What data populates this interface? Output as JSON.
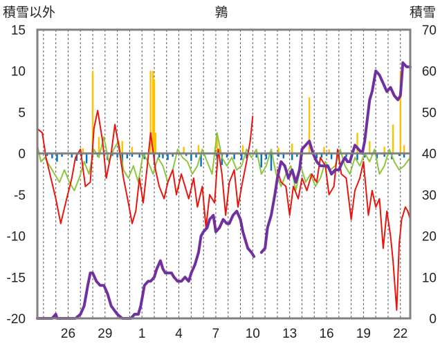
{
  "chart_data": {
    "type": "line",
    "title": "鶉",
    "left_axis_label": "積雪以外",
    "right_axis_label": "積雪",
    "left_ylim": [
      -20,
      15
    ],
    "left_ticks": [
      15,
      10,
      5,
      0,
      -5,
      -10,
      -15,
      -20
    ],
    "right_ylim": [
      0,
      70
    ],
    "right_ticks": [
      70,
      60,
      50,
      40,
      30,
      20,
      10,
      0
    ],
    "x_range": [
      23.5,
      53.8
    ],
    "x_tick_positions": [
      26,
      29,
      32,
      35,
      38,
      41,
      44,
      47,
      50
    ],
    "x_tick_labels": [
      "26",
      "29",
      "1",
      "4",
      "7",
      "10",
      "13",
      "16",
      "19",
      "22"
    ],
    "x_tick_label_positions": [
      26,
      29,
      32,
      35,
      38,
      41,
      44,
      47,
      50,
      53
    ],
    "grid": "vertical dashed daily",
    "colors": {
      "temp_max": "#e8150f",
      "temp_min": "#8cc63f",
      "snow_depth": "#7030a0",
      "precip": "#0070c0",
      "snowfall": "#ffc000",
      "frame": "#7f7f7f",
      "zero_line": "#7f7f7f"
    },
    "series": [
      {
        "key": "temp_max",
        "axis": "left",
        "x": [
          23.5,
          23.9,
          24.2,
          24.6,
          25.0,
          25.4,
          25.8,
          26.3,
          26.6,
          27.0,
          27.4,
          27.8,
          28.1,
          28.4,
          28.8,
          29.1,
          29.5,
          29.8,
          30.1,
          30.5,
          30.9,
          31.2,
          31.5,
          31.8,
          32.1,
          32.4,
          32.7,
          33.1,
          33.4,
          33.8,
          34.1,
          34.5,
          34.8,
          35.2,
          35.5,
          35.8,
          36.2,
          36.5,
          36.9,
          37.2,
          37.5,
          37.9,
          38.2,
          38.5,
          38.8,
          39.1,
          39.5,
          39.8,
          40.1,
          40.5,
          40.8,
          41.0
        ],
        "y": [
          3.0,
          2.5,
          -0.5,
          -3.0,
          -5.5,
          -8.5,
          -6.0,
          -3.0,
          -0.5,
          0.5,
          -4.0,
          -3.5,
          3.0,
          5.2,
          1.5,
          -3.0,
          0.0,
          3.5,
          1.0,
          -3.0,
          -6.0,
          -8.5,
          -7.0,
          -3.0,
          -6.0,
          -2.0,
          2.5,
          -2.0,
          -4.0,
          -5.5,
          -3.5,
          -2.0,
          -5.0,
          -2.5,
          -4.0,
          -5.5,
          -3.0,
          -6.5,
          -4.0,
          -9.0,
          -5.0,
          -6.0,
          0.5,
          -2.5,
          -7.5,
          -3.5,
          -2.0,
          -6.5,
          -4.0,
          -1.0,
          1.5,
          4.5
        ]
      },
      {
        "key": "temp_max",
        "axis": "left",
        "x": [
          43.0,
          43.3,
          43.7,
          44.0,
          44.3,
          44.7,
          45.0,
          45.4,
          45.8,
          46.2,
          46.5,
          46.9,
          47.2,
          47.6,
          47.9,
          48.2,
          48.6,
          49.0,
          49.3,
          49.7,
          50.0,
          50.4,
          50.7,
          51.0,
          51.3,
          51.6,
          51.9,
          52.2,
          52.4,
          52.7,
          52.9,
          53.1,
          53.4,
          53.6,
          53.8
        ],
        "y": [
          -2.0,
          -3.5,
          -4.0,
          -7.5,
          -4.0,
          -5.5,
          -3.0,
          -4.5,
          -2.5,
          -3.5,
          -0.5,
          -1.5,
          -5.0,
          -4.0,
          0.5,
          -2.5,
          -3.0,
          -8.0,
          -4.5,
          -3.0,
          -1.0,
          -7.5,
          -4.5,
          -6.5,
          -5.5,
          -11.5,
          -7.0,
          -10.0,
          -13.0,
          -19.0,
          -11.0,
          -8.0,
          -6.5,
          -7.0,
          -8.0
        ]
      },
      {
        "key": "temp_min",
        "axis": "left",
        "x": [
          23.5,
          23.8,
          24.1,
          24.5,
          24.9,
          25.3,
          25.7,
          26.1,
          26.5,
          26.9,
          27.3,
          27.7,
          28.1,
          28.5,
          28.9,
          29.3,
          29.7,
          30.1,
          30.5,
          30.9,
          31.3,
          31.7,
          32.1,
          32.5,
          32.9,
          33.3,
          33.7,
          34.1,
          34.5,
          34.9,
          35.3,
          35.7,
          36.1,
          36.5,
          36.9,
          37.3,
          37.7,
          38.1,
          38.5,
          38.9,
          39.3,
          39.7,
          40.1,
          40.5,
          40.9,
          41.3,
          41.7,
          42.1,
          42.5,
          42.9,
          43.3,
          43.7,
          44.1,
          44.5,
          44.9,
          45.3,
          45.7,
          46.1,
          46.5,
          46.9,
          47.3,
          47.7,
          48.1,
          48.5,
          48.9,
          49.3,
          49.7,
          50.1,
          50.5,
          50.9,
          51.3,
          51.7,
          52.1,
          52.5,
          52.9,
          53.3,
          53.8
        ],
        "y": [
          1.0,
          -1.0,
          -0.5,
          -1.5,
          -2.5,
          -3.5,
          -2.0,
          -3.5,
          -4.5,
          -3.0,
          -1.0,
          -2.5,
          0.5,
          -0.5,
          2.0,
          -1.0,
          0.5,
          1.5,
          -2.0,
          -3.0,
          -1.5,
          -3.5,
          0.0,
          -1.0,
          -2.5,
          -0.5,
          -1.5,
          -3.5,
          -2.0,
          0.5,
          -0.5,
          -1.0,
          -2.5,
          -1.5,
          0.5,
          -1.0,
          -2.5,
          2.5,
          -0.5,
          -1.5,
          -0.5,
          -2.0,
          -1.5,
          0.5,
          -0.5,
          0.5,
          -2.5,
          -1.5,
          0.5,
          -2.5,
          -4.0,
          -2.5,
          -1.5,
          -4.5,
          -1.5,
          -3.5,
          -2.5,
          -4.0,
          -3.0,
          -1.0,
          -2.0,
          -1.5,
          0.5,
          -1.5,
          -2.5,
          -0.5,
          -1.5,
          0.0,
          -1.0,
          0.5,
          -2.5,
          -1.5,
          0.5,
          -1.0,
          -2.0,
          -1.5,
          -0.5
        ]
      },
      {
        "key": "snow_depth",
        "axis": "right",
        "x": [
          23.5,
          24.7,
          25.0,
          25.1,
          25.3,
          25.8,
          26.2,
          26.6,
          27.0,
          27.3,
          27.6,
          27.8,
          28.0,
          28.3,
          28.6,
          28.9,
          29.2,
          29.5,
          30.0,
          30.4,
          30.8,
          31.1,
          31.4,
          31.7,
          31.9,
          32.2,
          32.5,
          32.7,
          33.0,
          33.2,
          33.5,
          33.7,
          33.9,
          34.1,
          34.4,
          34.6,
          34.9,
          35.2,
          35.5,
          35.8,
          36.0,
          36.3,
          36.6,
          36.8,
          37.0,
          37.3,
          37.5,
          37.8,
          38.0,
          38.3,
          38.6,
          38.9,
          39.1,
          39.4,
          39.7,
          40.0,
          40.2,
          40.4,
          40.6,
          40.9,
          41.1
        ],
        "y": [
          0,
          0,
          1,
          0,
          0,
          0,
          0,
          0,
          1,
          3,
          8,
          11,
          11,
          9,
          8,
          8,
          6,
          3,
          1,
          0,
          0,
          0,
          1,
          1,
          3,
          8,
          9,
          9,
          10,
          12,
          14,
          12,
          11,
          11,
          11,
          10,
          9,
          9,
          10,
          9,
          11,
          13,
          16,
          20,
          21,
          22,
          24,
          25,
          21,
          22,
          24,
          23,
          23,
          25,
          26,
          24,
          21,
          19,
          17,
          16,
          15
        ]
      },
      {
        "key": "snow_depth",
        "axis": "right",
        "x": [
          41.7,
          42.0,
          42.2,
          42.5,
          42.8,
          43.0,
          43.3,
          43.6,
          43.9,
          44.2,
          44.5,
          44.8,
          45.0,
          45.3,
          45.6,
          45.9,
          46.2,
          46.5,
          46.8,
          47.1,
          47.4,
          47.7,
          48.0,
          48.3,
          48.5,
          48.7,
          48.9,
          49.1,
          49.3,
          49.6,
          49.9,
          50.1,
          50.3,
          50.5,
          50.7,
          51.0,
          51.3,
          51.6,
          51.9,
          52.2,
          52.5,
          52.8,
          53.0,
          53.2,
          53.5,
          53.8
        ],
        "y": [
          16,
          17,
          22,
          25,
          30,
          34,
          38,
          37,
          34,
          36,
          33,
          36,
          41,
          42,
          43,
          40,
          38,
          37,
          37,
          37,
          35,
          36,
          36,
          38,
          39,
          38,
          38,
          40,
          42,
          41,
          40,
          43,
          48,
          53,
          55,
          60,
          59,
          57,
          55,
          56,
          54,
          53,
          54,
          62,
          61,
          61
        ]
      }
    ],
    "bars": [
      {
        "key": "precip",
        "axis": "left",
        "x": [
          24.3,
          24.7,
          25.1,
          25.5,
          26.3,
          26.7,
          27.1,
          27.5,
          28.0,
          28.4,
          29.2,
          29.6,
          30.0,
          30.4,
          30.8,
          31.2,
          31.8,
          32.2,
          33.0,
          33.4,
          33.7,
          34.1,
          34.5,
          35.6,
          36.0,
          36.4,
          36.8,
          38.1,
          38.5,
          38.9,
          39.5,
          40.1,
          40.5,
          41.3,
          41.7,
          42.1,
          42.5,
          43.1,
          43.5,
          44.2,
          44.6,
          45.0,
          46.2,
          46.6,
          47.0,
          47.4,
          48.0,
          48.6,
          49.0,
          49.5,
          50.1,
          50.7,
          51.1,
          51.7,
          52.3,
          52.9,
          53.3
        ],
        "y": [
          -0.3,
          -0.6,
          -1.0,
          -0.4,
          -0.5,
          -0.9,
          -0.3,
          -1.2,
          -0.5,
          -0.4,
          -0.8,
          -0.3,
          -0.5,
          -1.6,
          -0.6,
          -0.4,
          -0.5,
          -0.7,
          -1.4,
          -0.5,
          -0.6,
          -0.8,
          -0.4,
          -0.3,
          -0.9,
          -0.5,
          -1.6,
          -0.6,
          -1.4,
          -0.5,
          -0.7,
          -0.8,
          -0.6,
          -0.5,
          -1.7,
          -0.7,
          -2.1,
          -0.4,
          -0.6,
          -0.8,
          -0.4,
          -0.3,
          -0.6,
          -0.5,
          -0.3,
          -0.7,
          -0.5,
          -0.4,
          -0.6,
          -0.8,
          -0.5,
          -0.3,
          -0.6,
          -0.4,
          -0.7,
          -0.3,
          -0.5
        ]
      },
      {
        "key": "snowfall",
        "axis": "left",
        "x": [
          27.2,
          28.0,
          28.5,
          30.4,
          31.2,
          32.7,
          32.9,
          33.0,
          33.1,
          35.4,
          36.6,
          38.1,
          38.3,
          40.2,
          43.1,
          44.2,
          45.6,
          46.8,
          47.2,
          49.5,
          50.5,
          51.7,
          52.4,
          53.0,
          53.3
        ],
        "y": [
          0.6,
          10.0,
          2.0,
          1.5,
          0.8,
          10.0,
          10.0,
          9.0,
          2.5,
          0.8,
          1.0,
          2.0,
          0.6,
          1.0,
          0.7,
          1.2,
          6.8,
          0.8,
          0.5,
          2.5,
          1.5,
          0.8,
          3.5,
          10.0,
          1.0
        ]
      }
    ]
  }
}
